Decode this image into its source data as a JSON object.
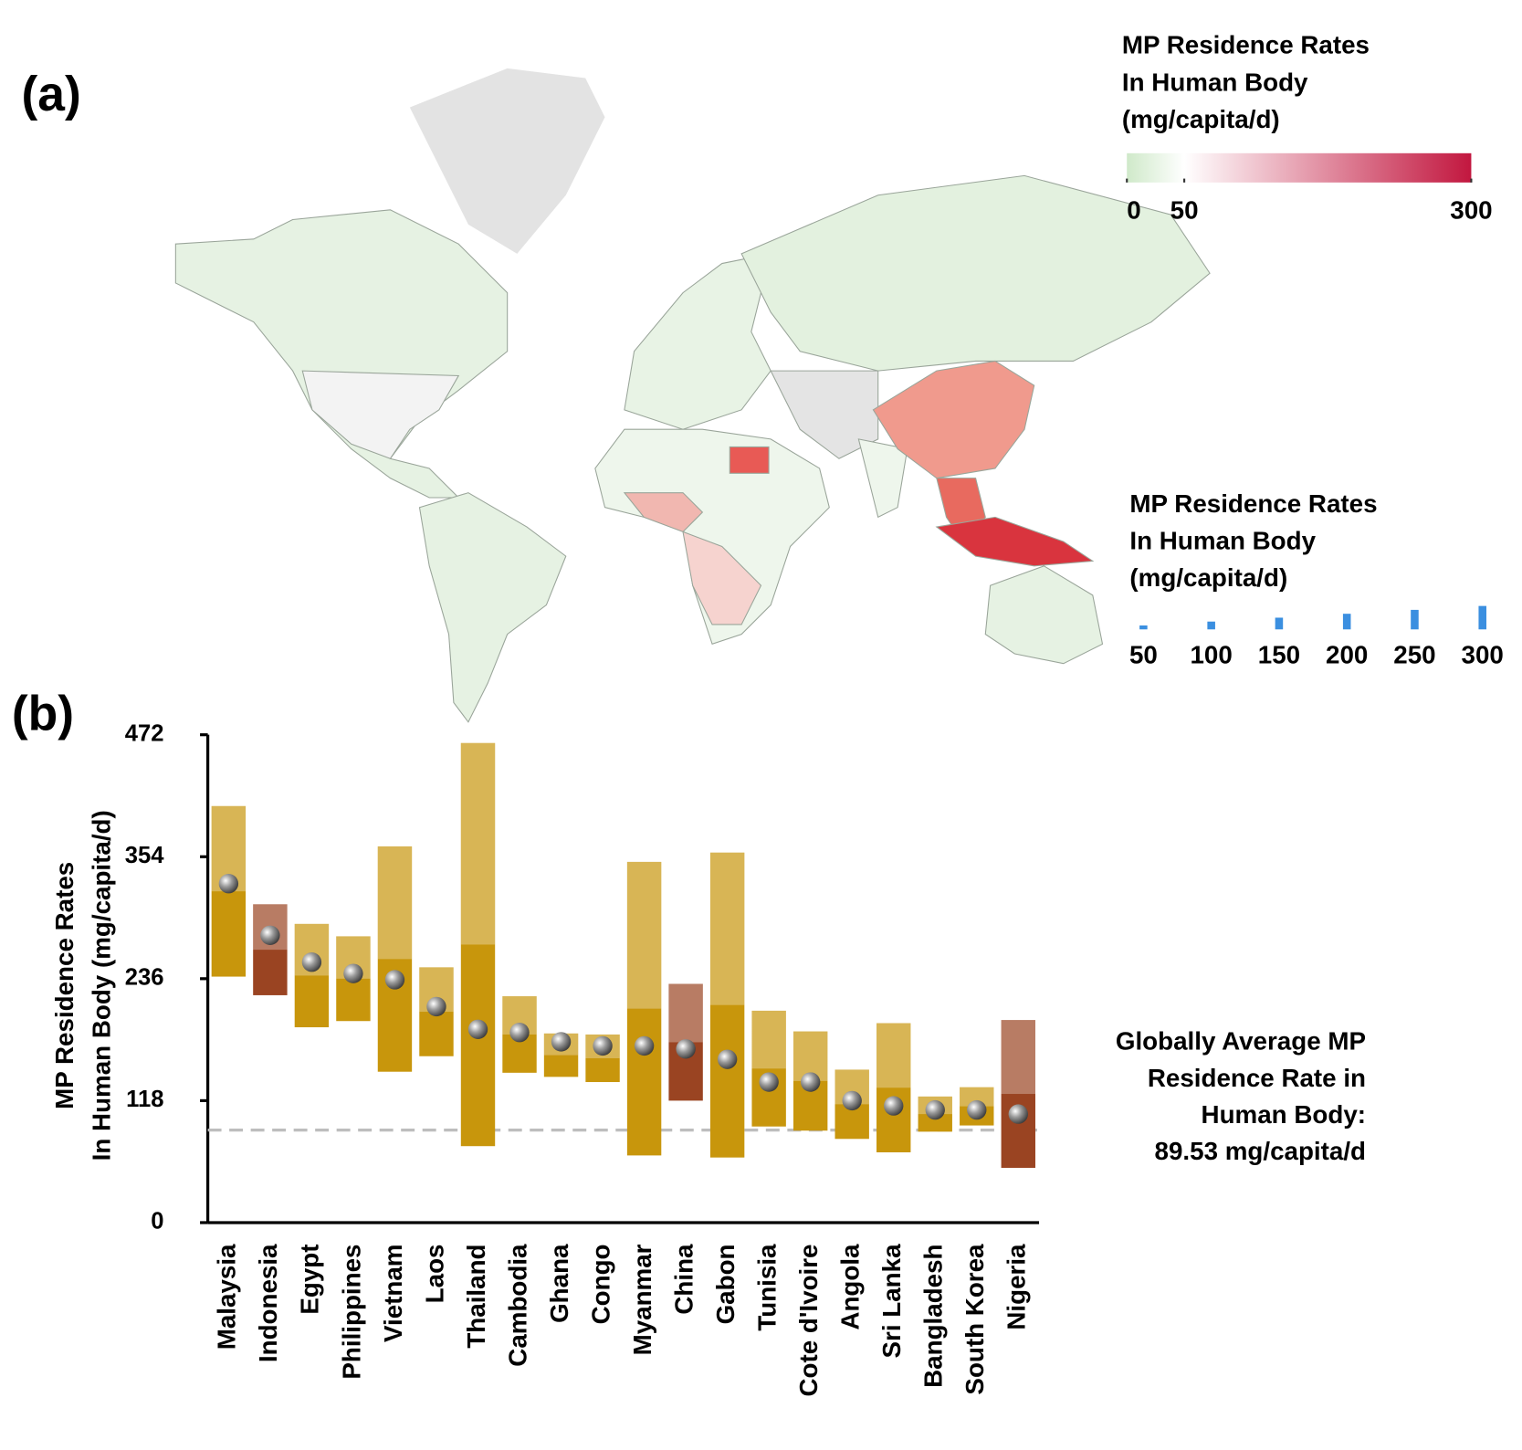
{
  "panel_labels": [
    "(a)",
    "(b)"
  ],
  "map": {
    "colorbar": {
      "title_lines": [
        "MP Residence Rates",
        "In Human Body",
        "(mg/capita/d)"
      ],
      "lim": [
        0,
        300
      ],
      "ticks": [
        0,
        50,
        300
      ],
      "colors": [
        "#cfe9c9",
        "#ffffff",
        "#c2173f"
      ]
    },
    "bar_legend": {
      "title_lines": [
        "MP Residence Rates",
        "In Human Body",
        "(mg/capita/d)"
      ],
      "ticks": [
        50,
        100,
        150,
        200,
        250,
        300
      ],
      "color": "#3b8fe0"
    }
  },
  "chart_data": {
    "type": "range",
    "y_label_lines": [
      "MP Residence Rates",
      "In Human Body (mg/capita/d)"
    ],
    "categories": [
      "Malaysia",
      "Indonesia",
      "Egypt",
      "Philippines",
      "Vietnam",
      "Laos",
      "Thailand",
      "Cambodia",
      "Ghana",
      "Congo",
      "Myanmar",
      "China",
      "Gabon",
      "Tunisia",
      "Cote d'Ivoire",
      "Angola",
      "Sri Lanka",
      "Bangladesh",
      "South Korea",
      "Nigeria"
    ],
    "high": [
      403,
      308,
      289,
      277,
      364,
      247,
      464,
      219,
      183,
      182,
      349,
      231,
      358,
      205,
      185,
      148,
      193,
      122,
      131,
      196
    ],
    "low": [
      238,
      220,
      189,
      195,
      146,
      161,
      74,
      145,
      141,
      136,
      65,
      118,
      63,
      93,
      89,
      81,
      68,
      88,
      94,
      53
    ],
    "mean": [
      328,
      278,
      252,
      241,
      235,
      209,
      187,
      184,
      175,
      171,
      171,
      168,
      158,
      136,
      136,
      118,
      113,
      109,
      109,
      105
    ],
    "colors": [
      "#c8960c",
      "#9a4422",
      "#c8960c",
      "#c8960c",
      "#c8960c",
      "#c8960c",
      "#c8960c",
      "#c8960c",
      "#c8960c",
      "#c8960c",
      "#c8960c",
      "#9a4422",
      "#c8960c",
      "#c8960c",
      "#c8960c",
      "#c8960c",
      "#c8960c",
      "#c8960c",
      "#c8960c",
      "#9a4422"
    ],
    "ylim": [
      0,
      472
    ],
    "yticks": [
      0,
      118,
      236,
      354,
      472
    ],
    "reference_line": 89.53,
    "annotation_lines": [
      "Globally Average MP",
      "Residence Rate in",
      "Human Body:",
      "89.53 mg/capita/d"
    ]
  }
}
